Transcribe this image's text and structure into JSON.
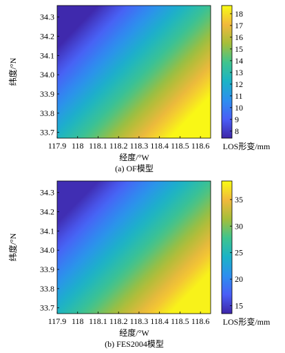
{
  "colormap": [
    "#3e26a8",
    "#4a5ef6",
    "#2d8fef",
    "#1bb3c6",
    "#3fc48e",
    "#a5be3a",
    "#f1b93c",
    "#f9fb14"
  ],
  "chart_data": [
    {
      "type": "heatmap",
      "caption": "(a) OF模型",
      "xlabel": "经度/°W",
      "ylabel": "纬度/°N",
      "colorbar_label": "LOS形变/mm",
      "x_ticks": [
        "117.9",
        "118",
        "118.1",
        "118.2",
        "118.3",
        "118.4",
        "118.5",
        "118.6"
      ],
      "y_ticks": [
        "34.3",
        "34.2",
        "34.1",
        "34.0",
        "33.9",
        "33.8",
        "33.7"
      ],
      "colorbar_ticks": [
        "18",
        "17",
        "16",
        "15",
        "14",
        "13",
        "12",
        "11",
        "10",
        "9",
        "8"
      ],
      "xlim": [
        117.9,
        118.65
      ],
      "ylim": [
        33.67,
        34.36
      ],
      "clim": [
        7.4,
        18.7
      ],
      "corner_values": {
        "top_left": 7.5,
        "top_right": 13.0,
        "bottom_left": 12.0,
        "bottom_right": 18.6
      }
    },
    {
      "type": "heatmap",
      "caption": "(b) FES2004模型",
      "xlabel": "经度/°W",
      "ylabel": "纬度/°N",
      "colorbar_label": "LOS形变/mm",
      "x_ticks": [
        "117.9",
        "118",
        "118.1",
        "118.2",
        "118.3",
        "118.4",
        "118.5",
        "118.6"
      ],
      "y_ticks": [
        "34.3",
        "34.2",
        "34.1",
        "34.0",
        "33.9",
        "33.8",
        "33.7"
      ],
      "colorbar_ticks": [
        "35",
        "30",
        "25",
        "20",
        "15"
      ],
      "xlim": [
        117.9,
        118.65
      ],
      "ylim": [
        33.67,
        34.36
      ],
      "clim": [
        13.5,
        38.5
      ],
      "corner_values": {
        "top_left": 14.0,
        "top_right": 26.0,
        "bottom_left": 24.0,
        "bottom_right": 38.0
      }
    }
  ]
}
